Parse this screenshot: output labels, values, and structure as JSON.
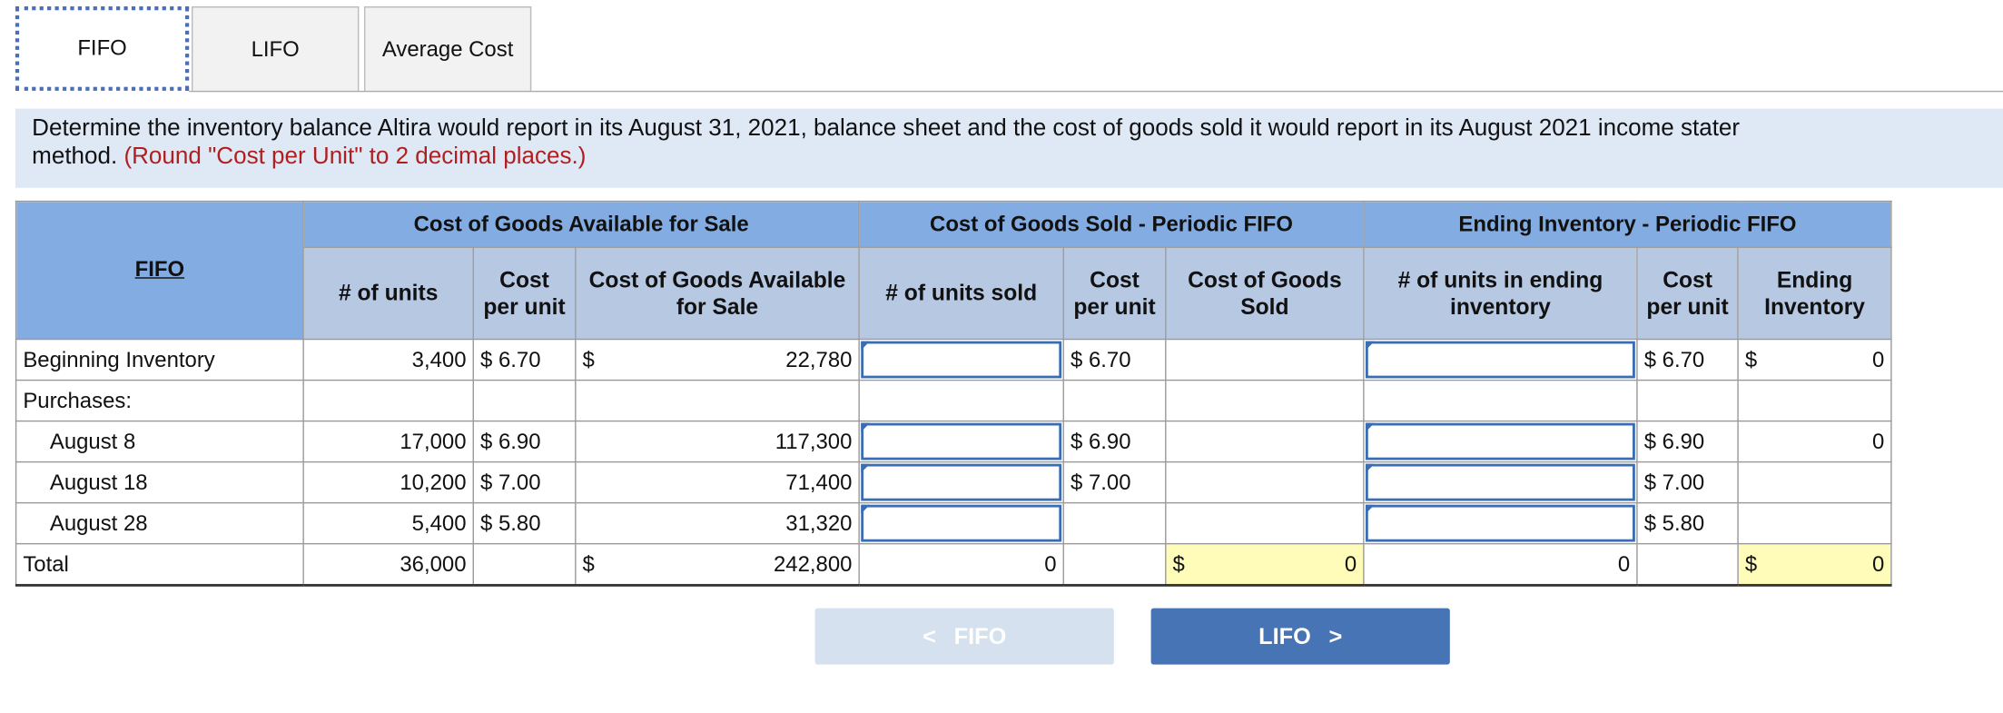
{
  "tabs": [
    "FIFO",
    "LIFO",
    "Average Cost"
  ],
  "instruction": {
    "line1": "Determine the inventory balance Altira would report in its August 31, 2021, balance sheet and the cost of goods sold it would report in its August 2021 income stater",
    "line2": "method.",
    "note": "(Round \"Cost per Unit\" to 2 decimal places.)"
  },
  "table": {
    "corner": "FIFO",
    "groups": [
      "Cost of Goods Available for Sale",
      "Cost of Goods Sold - Periodic FIFO",
      "Ending Inventory - Periodic FIFO"
    ],
    "columns": [
      "# of units",
      "Cost per unit",
      "Cost of Goods Available for Sale",
      "# of units sold",
      "Cost per unit",
      "Cost of Goods Sold",
      "# of units in ending inventory",
      "Cost per unit",
      "Ending Inventory"
    ],
    "rows": [
      {
        "label": "Beginning Inventory",
        "units": "3,400",
        "cost": "$ 6.70",
        "avail_sign": "$",
        "avail": "22,780",
        "sold_cost": "$ 6.70",
        "end_cost": "$ 6.70",
        "end_sign": "$",
        "end_value": "0"
      },
      {
        "label": "Purchases:"
      },
      {
        "label": "August 8",
        "units": "17,000",
        "cost": "$ 6.90",
        "avail": "117,300",
        "sold_cost": "$ 6.90",
        "end_cost": "$ 6.90",
        "end_value": "0"
      },
      {
        "label": "August 18",
        "units": "10,200",
        "cost": "$ 7.00",
        "avail": "71,400",
        "sold_cost": "$ 7.00",
        "end_cost": "$ 7.00"
      },
      {
        "label": "August 28",
        "units": "5,400",
        "cost": "$ 5.80",
        "avail": "31,320",
        "end_cost": "$ 5.80"
      },
      {
        "label": "Total",
        "units": "36,000",
        "avail_sign": "$",
        "avail": "242,800",
        "sold": "0",
        "cogs_sign": "$",
        "cogs": "0",
        "end_units": "0",
        "end_sign": "$",
        "end_value": "0"
      }
    ]
  },
  "buttons": {
    "prev": "FIFO",
    "next": "LIFO"
  }
}
